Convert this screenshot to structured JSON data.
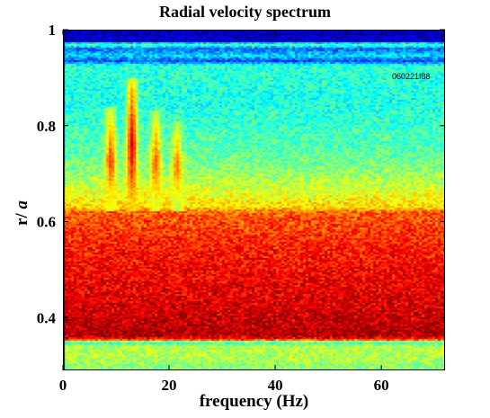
{
  "chart_data": {
    "type": "heatmap",
    "title": "Radial velocity spectrum",
    "xlabel": "frequency (Hz)",
    "ylabel_prefix": "r/ ",
    "ylabel_var": "a",
    "annotation": "060221f88",
    "xlim": [
      0,
      72
    ],
    "ylim": [
      0.29,
      1.0
    ],
    "x_ticks": [
      0,
      20,
      40,
      60
    ],
    "x_tick_labels": [
      "0",
      "20",
      "40",
      "60"
    ],
    "y_ticks": [
      0.4,
      0.6,
      0.8,
      1.0
    ],
    "y_tick_labels": [
      "0.4",
      "0.6",
      "0.8",
      "1"
    ],
    "colormap": [
      "#00008f",
      "#0000ff",
      "#0080ff",
      "#00ffff",
      "#80ff80",
      "#ffff00",
      "#ff8000",
      "#ff0000",
      "#800000"
    ],
    "intensity_profile": [
      {
        "r": 1.0,
        "level": 0.04
      },
      {
        "r": 0.975,
        "level": 0.06
      },
      {
        "r": 0.97,
        "level": 0.5
      },
      {
        "r": 0.96,
        "level": 0.22
      },
      {
        "r": 0.945,
        "level": 0.35
      },
      {
        "r": 0.935,
        "level": 0.18
      },
      {
        "r": 0.925,
        "level": 0.42
      },
      {
        "r": 0.85,
        "level": 0.4
      },
      {
        "r": 0.75,
        "level": 0.46
      },
      {
        "r": 0.7,
        "level": 0.52
      },
      {
        "r": 0.66,
        "level": 0.6
      },
      {
        "r": 0.63,
        "level": 0.66
      },
      {
        "r": 0.62,
        "level": 0.78
      },
      {
        "r": 0.56,
        "level": 0.84
      },
      {
        "r": 0.5,
        "level": 0.88
      },
      {
        "r": 0.45,
        "level": 0.9
      },
      {
        "r": 0.4,
        "level": 0.93
      },
      {
        "r": 0.365,
        "level": 0.96
      },
      {
        "r": 0.355,
        "level": 0.88
      },
      {
        "r": 0.348,
        "level": 0.4
      },
      {
        "r": 0.34,
        "level": 0.56
      },
      {
        "r": 0.32,
        "level": 0.55
      },
      {
        "r": 0.29,
        "level": 0.5
      }
    ],
    "spectral_lines": [
      {
        "frequency": 9,
        "r_min": 0.62,
        "r_max": 0.84,
        "peak_level": 0.82
      },
      {
        "frequency": 13,
        "r_min": 0.62,
        "r_max": 0.9,
        "peak_level": 0.92
      },
      {
        "frequency": 17.5,
        "r_min": 0.62,
        "r_max": 0.83,
        "peak_level": 0.8
      },
      {
        "frequency": 21.5,
        "r_min": 0.62,
        "r_max": 0.81,
        "peak_level": 0.76
      }
    ]
  }
}
